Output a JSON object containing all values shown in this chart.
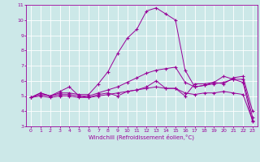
{
  "xlabel": "Windchill (Refroidissement éolien,°C)",
  "background_color": "#cce8e8",
  "grid_color": "#ffffff",
  "line_color": "#990099",
  "xlim": [
    -0.5,
    23.5
  ],
  "ylim": [
    3,
    11
  ],
  "xticks": [
    0,
    1,
    2,
    3,
    4,
    5,
    6,
    7,
    8,
    9,
    10,
    11,
    12,
    13,
    14,
    15,
    16,
    17,
    18,
    19,
    20,
    21,
    22,
    23
  ],
  "yticks": [
    3,
    4,
    5,
    6,
    7,
    8,
    9,
    10,
    11
  ],
  "line2_x": [
    0,
    1,
    2,
    3,
    4,
    5,
    6,
    7,
    8,
    9,
    10,
    11,
    12,
    13,
    14,
    15,
    16,
    17,
    18,
    19,
    20,
    21,
    22,
    23
  ],
  "line2_y": [
    4.9,
    5.2,
    5.0,
    5.2,
    5.2,
    5.1,
    5.1,
    5.8,
    6.6,
    7.8,
    8.8,
    9.4,
    10.6,
    10.8,
    10.4,
    10.0,
    6.7,
    5.6,
    5.7,
    5.9,
    5.8,
    6.2,
    6.3,
    4.0
  ],
  "line3_x": [
    0,
    1,
    2,
    3,
    4,
    5,
    6,
    7,
    8,
    9,
    10,
    11,
    12,
    13,
    14,
    15,
    16,
    17,
    18,
    19,
    20,
    21,
    22,
    23
  ],
  "line3_y": [
    4.9,
    5.1,
    5.0,
    5.1,
    5.1,
    5.0,
    5.0,
    5.2,
    5.4,
    5.6,
    5.9,
    6.2,
    6.5,
    6.7,
    6.8,
    6.9,
    5.9,
    5.6,
    5.7,
    5.8,
    5.9,
    6.1,
    6.1,
    3.6
  ],
  "line4_x": [
    0,
    1,
    2,
    3,
    4,
    5,
    6,
    7,
    8,
    9,
    10,
    11,
    12,
    13,
    14,
    15,
    16,
    17,
    18,
    19,
    20,
    21,
    22,
    23
  ],
  "line4_y": [
    4.9,
    5.0,
    4.9,
    5.0,
    5.0,
    4.9,
    4.9,
    5.0,
    5.1,
    5.2,
    5.3,
    5.4,
    5.5,
    5.6,
    5.5,
    5.5,
    5.2,
    5.1,
    5.2,
    5.2,
    5.3,
    5.2,
    5.1,
    3.4
  ],
  "line1_x": [
    0,
    1,
    2,
    3,
    4,
    5,
    6,
    7,
    8,
    9,
    10,
    11,
    12,
    13,
    14,
    15,
    16,
    17,
    18,
    19,
    20,
    21,
    22,
    23
  ],
  "line1_y": [
    4.9,
    5.2,
    5.0,
    5.3,
    5.6,
    5.0,
    4.9,
    5.1,
    5.2,
    5.0,
    5.3,
    5.4,
    5.6,
    6.0,
    5.5,
    5.5,
    5.0,
    5.8,
    5.8,
    5.9,
    6.3,
    6.1,
    5.9,
    3.3
  ]
}
